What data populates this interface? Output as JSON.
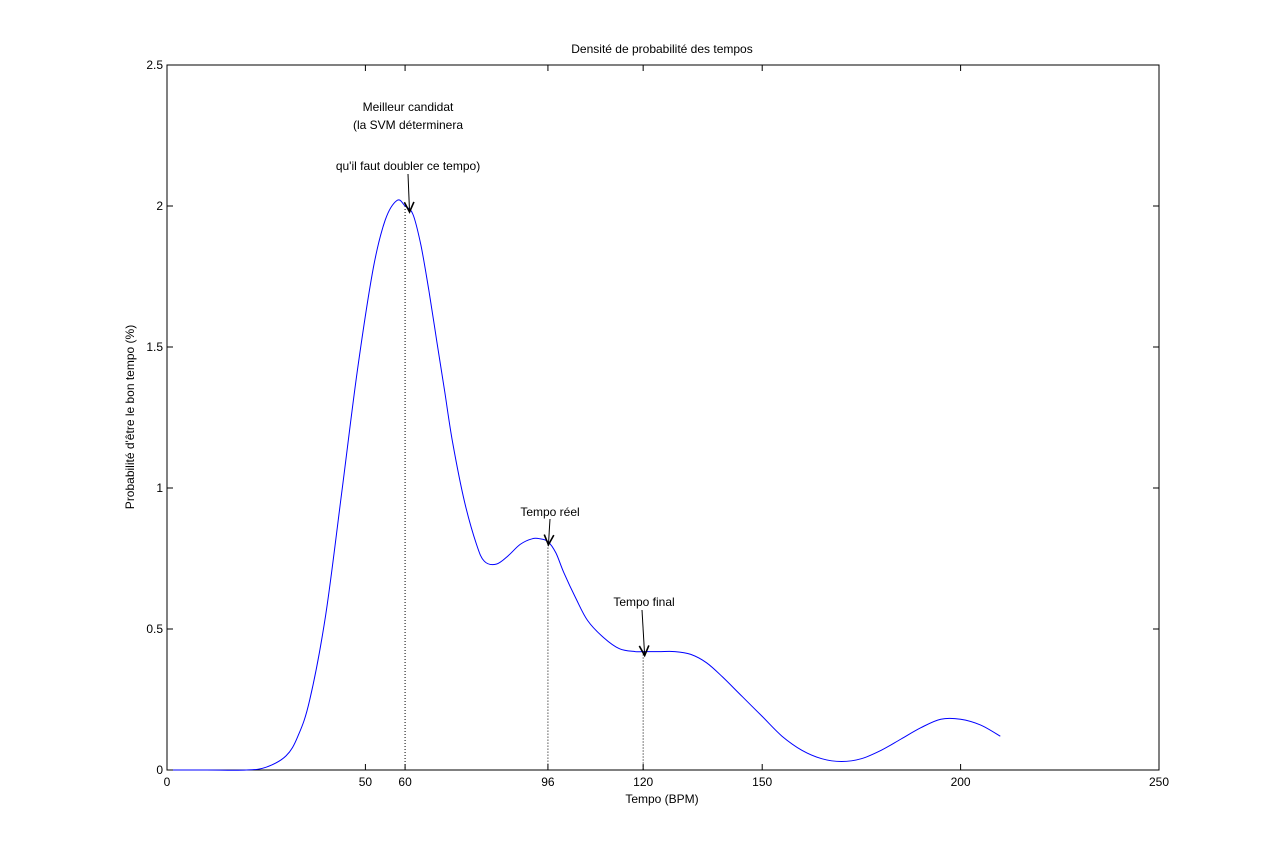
{
  "chart_data": {
    "type": "line",
    "title": "Densité de probabilité des tempos",
    "xlabel": "Tempo (BPM)",
    "ylabel": "Probabilité d'être le bon tempo (%)",
    "xlim": [
      0,
      250
    ],
    "ylim": [
      0,
      2.5
    ],
    "xticks": [
      0,
      50,
      60,
      96,
      120,
      150,
      200,
      250
    ],
    "yticks": [
      0,
      0.5,
      1,
      1.5,
      2,
      2.5
    ],
    "xtick_labels": [
      "0",
      "50",
      "60",
      "96",
      "120",
      "150",
      "200",
      "250"
    ],
    "ytick_labels": [
      "0",
      "0.5",
      "1",
      "1.5",
      "2",
      "2.5"
    ],
    "grid": false,
    "line_color": "#0000ff",
    "series": [
      {
        "x": [
          0,
          10,
          20,
          25,
          30,
          33,
          36,
          40,
          44,
          48,
          52,
          55,
          58,
          60,
          62,
          64,
          66,
          68,
          70,
          72,
          75,
          78,
          80,
          83,
          86,
          89,
          92,
          94,
          96,
          98,
          100,
          103,
          106,
          110,
          114,
          118,
          120,
          124,
          128,
          132,
          136,
          140,
          145,
          150,
          155,
          160,
          165,
          170,
          175,
          180,
          185,
          190,
          195,
          200,
          205,
          210
        ],
        "y": [
          0,
          0,
          0,
          0.01,
          0.05,
          0.12,
          0.25,
          0.55,
          0.98,
          1.42,
          1.78,
          1.95,
          2.02,
          2.0,
          1.97,
          1.86,
          1.7,
          1.52,
          1.34,
          1.16,
          0.95,
          0.8,
          0.74,
          0.73,
          0.76,
          0.8,
          0.82,
          0.82,
          0.81,
          0.77,
          0.7,
          0.61,
          0.53,
          0.47,
          0.43,
          0.42,
          0.42,
          0.42,
          0.42,
          0.41,
          0.38,
          0.33,
          0.26,
          0.19,
          0.12,
          0.07,
          0.04,
          0.03,
          0.04,
          0.07,
          0.11,
          0.15,
          0.18,
          0.18,
          0.16,
          0.12
        ]
      }
    ],
    "vlines": [
      60,
      96,
      120
    ],
    "annotations": [
      {
        "lines": [
          "Meilleur candidat",
          "(la SVM déterminera",
          "qu'il faut doubler ce tempo)"
        ],
        "target": [
          61,
          2.0
        ]
      },
      {
        "lines": [
          "Tempo réel"
        ],
        "target": [
          96,
          0.82
        ]
      },
      {
        "lines": [
          "Tempo final"
        ],
        "target": [
          120,
          0.42
        ]
      }
    ]
  }
}
